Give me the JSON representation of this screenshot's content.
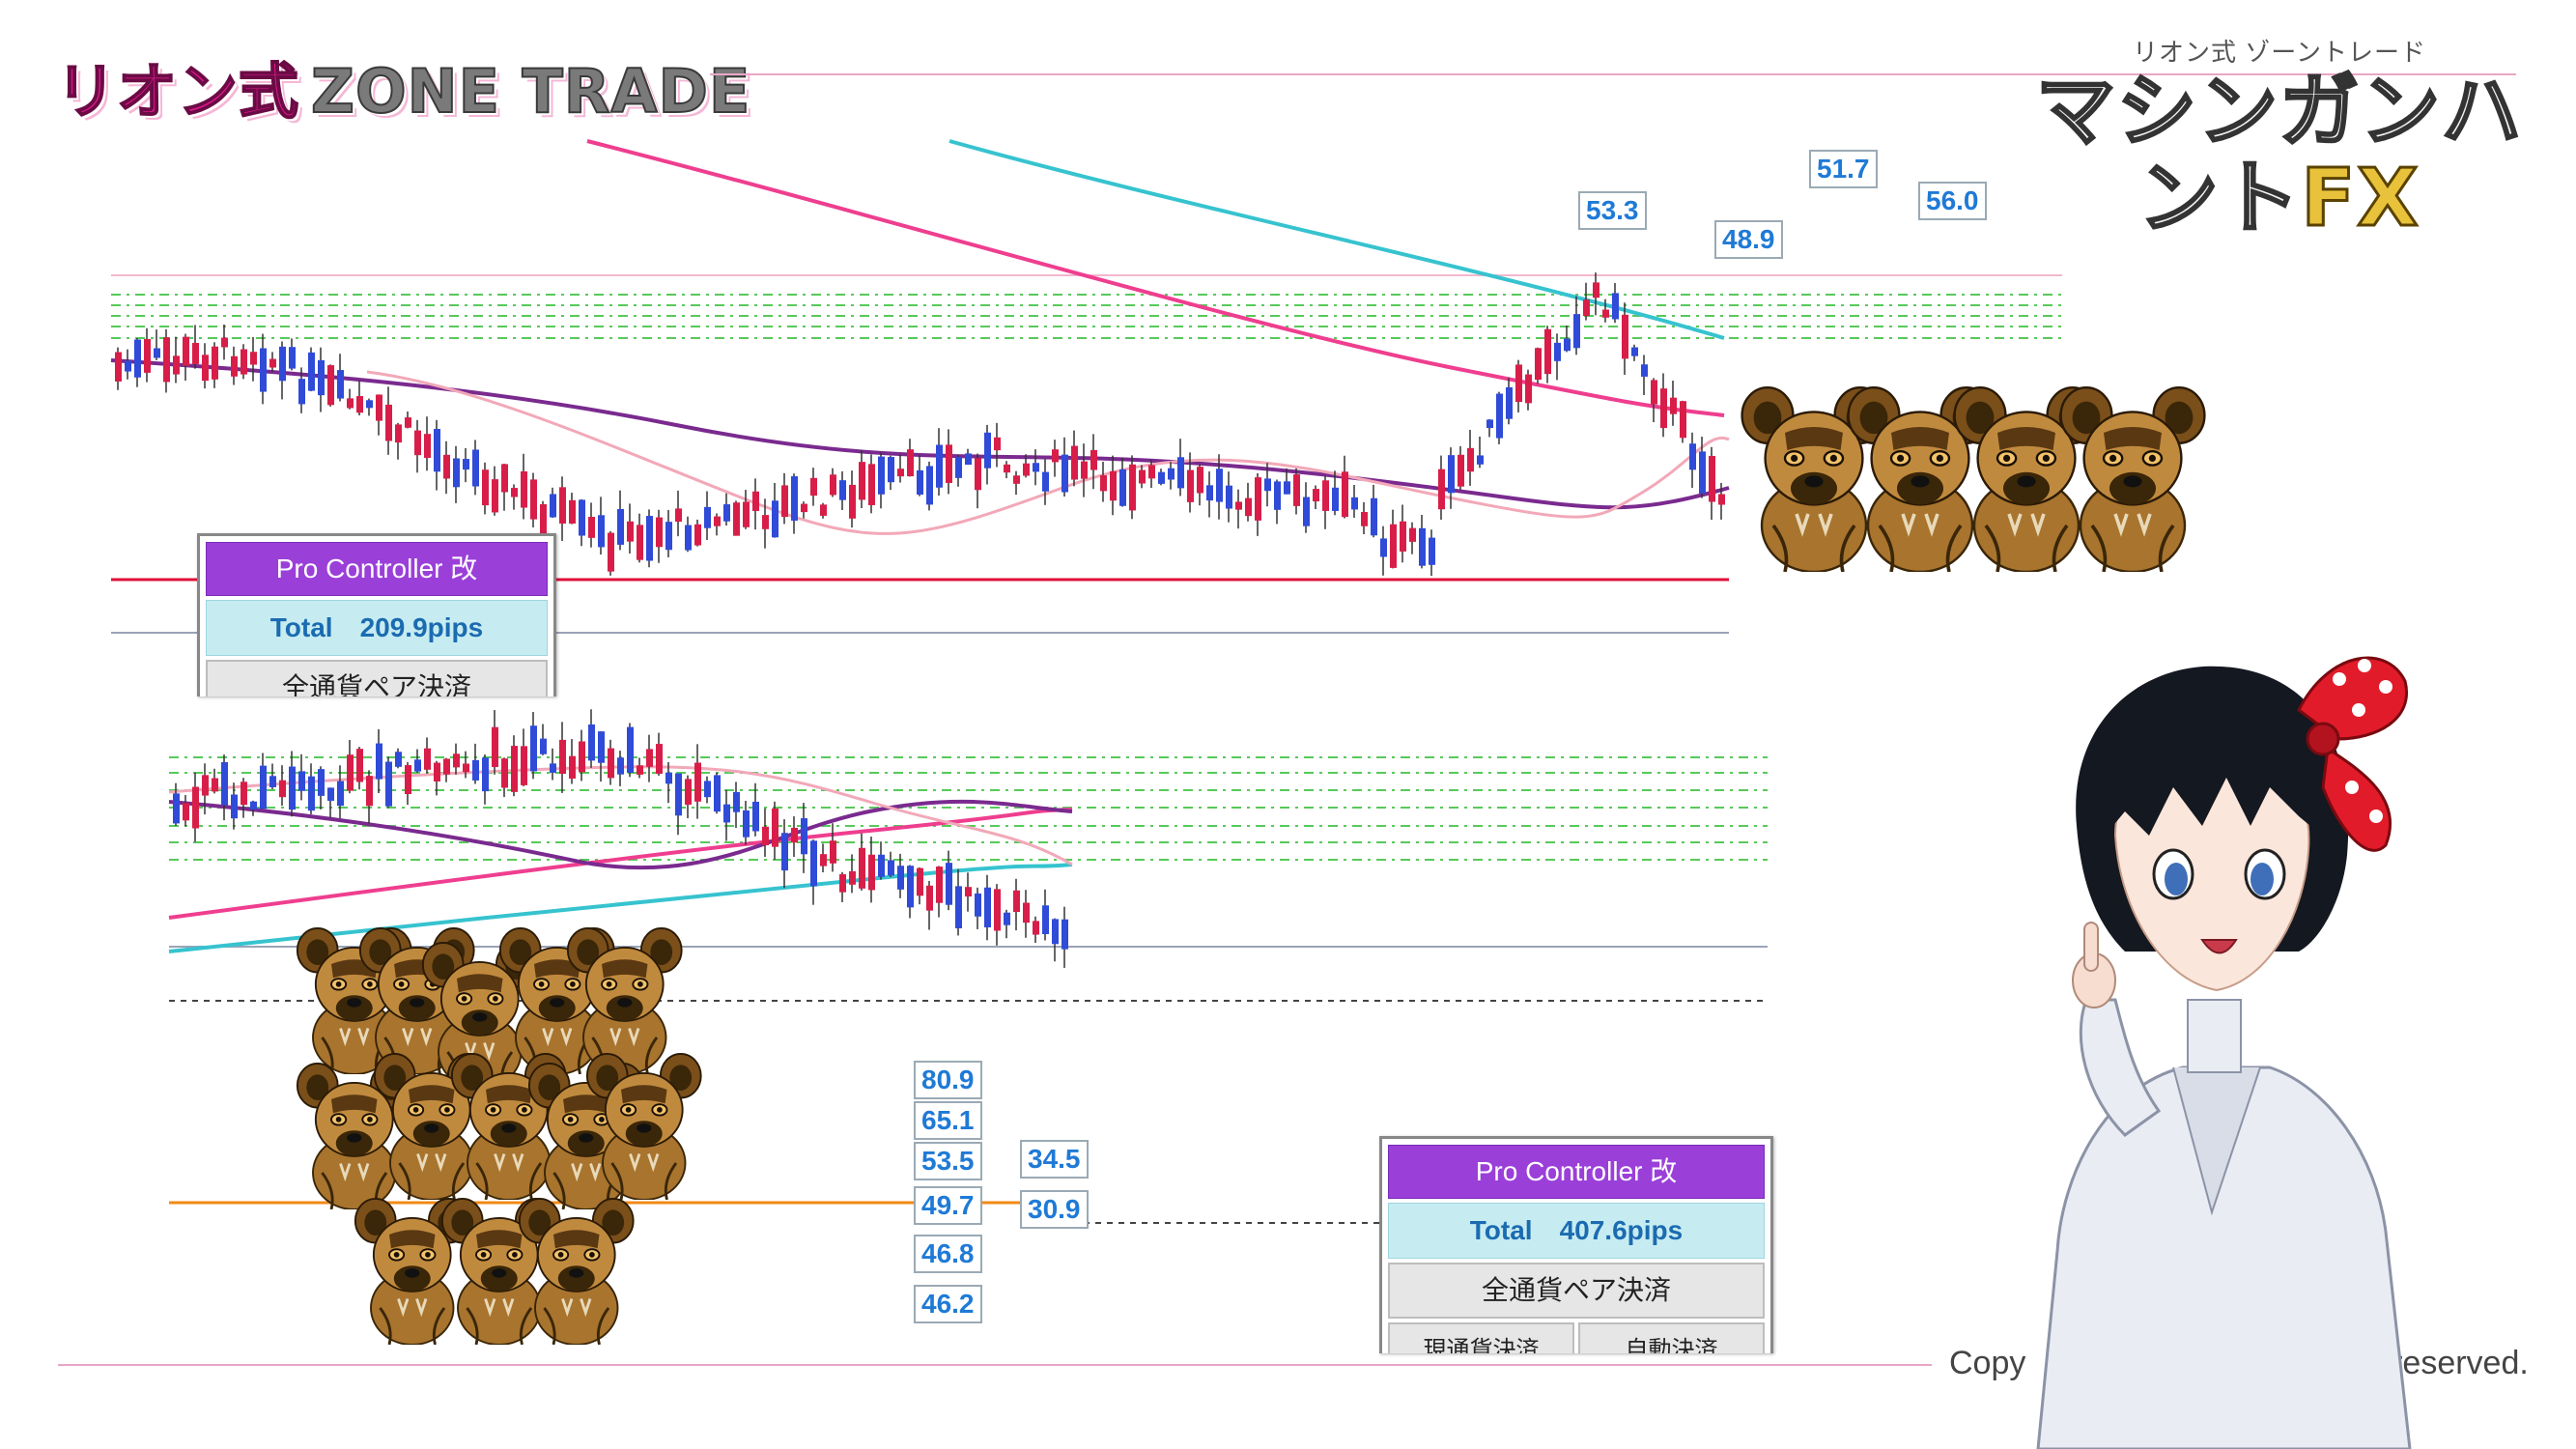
{
  "header": {
    "logo_left_part1": "リオン式",
    "logo_left_part2": "ZONE TRADE",
    "logo_right_sub": "リオン式 ゾーントレード",
    "logo_right_main": "マシンガンハント",
    "logo_right_fx": "FX"
  },
  "footer": {
    "copyright_start": "Copy",
    "copyright_end": "ghts reserved."
  },
  "panel_top": {
    "title": "Pro Controller 改",
    "total_label": "Total",
    "total_value": "209.9pips",
    "button_close_all": "全通貨ペア決済"
  },
  "panel_bottom": {
    "title": "Pro Controller 改",
    "total_label": "Total",
    "total_value": "407.6pips",
    "button_close_all": "全通貨ペア決済",
    "button_current": "現通貨決済",
    "button_auto": "自動決済"
  },
  "labels_top": [
    "53.3",
    "48.9",
    "51.7",
    "56.0"
  ],
  "labels_bottom_left": [
    "80.9",
    "65.1",
    "53.5",
    "49.7",
    "46.8",
    "46.2"
  ],
  "labels_bottom_right": [
    "34.5",
    "30.9"
  ],
  "colors": {
    "bull_candle": "#2f4bd8",
    "bear_candle": "#d81e48",
    "ma_magenta": "#ef3e8f",
    "ma_cyan": "#36c3cf",
    "ma_purple": "#7a2a8f",
    "ma_pink": "#f2a8b8",
    "zone_green": "#58c95a",
    "support_red": "#e0103a",
    "orange_line": "#f08a14",
    "panel_purple": "#9b3fd9",
    "panel_cyan": "#c6ecf2"
  },
  "icons": [
    "dog-pack-icon",
    "character-illustration"
  ]
}
